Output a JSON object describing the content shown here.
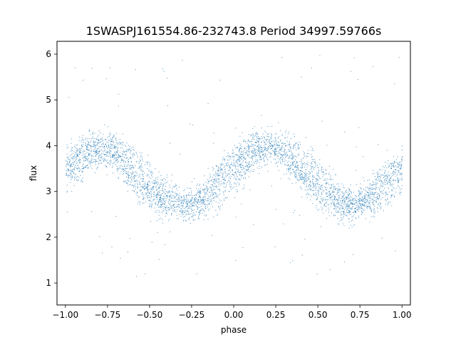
{
  "chart_data": {
    "type": "scatter",
    "title": "1SWASPJ161554.86-232743.8 Period 34997.59766s",
    "xlabel": "phase",
    "ylabel": "flux",
    "xlim": [
      -1.05,
      1.05
    ],
    "ylim": [
      0.52,
      6.28
    ],
    "xticks": [
      "−1.00",
      "−0.75",
      "−0.50",
      "−0.25",
      "0.00",
      "0.25",
      "0.50",
      "0.75",
      "1.00"
    ],
    "xtick_values": [
      -1.0,
      -0.75,
      -0.5,
      -0.25,
      0.0,
      0.25,
      0.5,
      0.75,
      1.0
    ],
    "yticks": [
      "1",
      "2",
      "3",
      "4",
      "5",
      "6"
    ],
    "ytick_values": [
      1,
      2,
      3,
      4,
      5,
      6
    ],
    "grid": false,
    "marker_color": "#1f77b4",
    "series": [
      {
        "description_points": "dense folded light curve, sinusoidal with two interleaved branches",
        "x": [
          -1.0,
          -0.95,
          -0.9,
          -0.85,
          -0.8,
          -0.75,
          -0.7,
          -0.65,
          -0.6,
          -0.55,
          -0.5,
          -0.45,
          -0.4,
          -0.35,
          -0.3,
          -0.25,
          -0.2,
          -0.15,
          -0.1,
          -0.05,
          0.0,
          0.05,
          0.1,
          0.15,
          0.2,
          0.25,
          0.3,
          0.35,
          0.4,
          0.45,
          0.5,
          0.55,
          0.6,
          0.65,
          0.7,
          0.75,
          0.8,
          0.85,
          0.9,
          0.95,
          1.0
        ],
        "y": [
          3.6,
          3.8,
          3.95,
          4.0,
          3.95,
          3.85,
          3.7,
          3.5,
          3.3,
          3.1,
          2.95,
          2.8,
          2.72,
          2.7,
          2.72,
          2.78,
          2.9,
          3.1,
          3.3,
          3.5,
          3.65,
          3.85,
          4.0,
          4.05,
          4.0,
          3.9,
          3.75,
          3.55,
          3.35,
          3.15,
          2.98,
          2.85,
          2.75,
          2.7,
          2.72,
          2.8,
          2.95,
          3.15,
          3.35,
          3.5,
          3.6
        ]
      }
    ]
  }
}
